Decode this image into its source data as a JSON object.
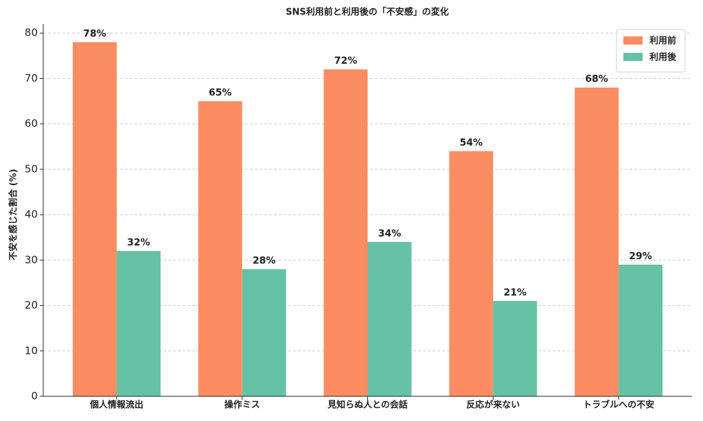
{
  "chart_data": {
    "type": "bar",
    "title": "SNS利用前と利用後の「不安感」の変化",
    "y_label": "不安を感じた割合 (%)",
    "categories": [
      "個人情報流出",
      "操作ミス",
      "見知らぬ人との会話",
      "反応が来ない",
      "トラブルへの不安"
    ],
    "series": [
      {
        "name": "利用前",
        "color": "#fc8d62",
        "values": [
          78,
          65,
          72,
          54,
          68
        ],
        "value_labels": [
          "78%",
          "65%",
          "72%",
          "54%",
          "68%"
        ]
      },
      {
        "name": "利用後",
        "color": "#66c2a5",
        "values": [
          32,
          28,
          34,
          21,
          29
        ],
        "value_labels": [
          "32%",
          "28%",
          "34%",
          "21%",
          "29%"
        ]
      }
    ],
    "ylim": [
      0,
      82
    ],
    "yticks": [
      0,
      10,
      20,
      30,
      40,
      50,
      60,
      70,
      80
    ],
    "grid": true,
    "legend": "upper right"
  }
}
